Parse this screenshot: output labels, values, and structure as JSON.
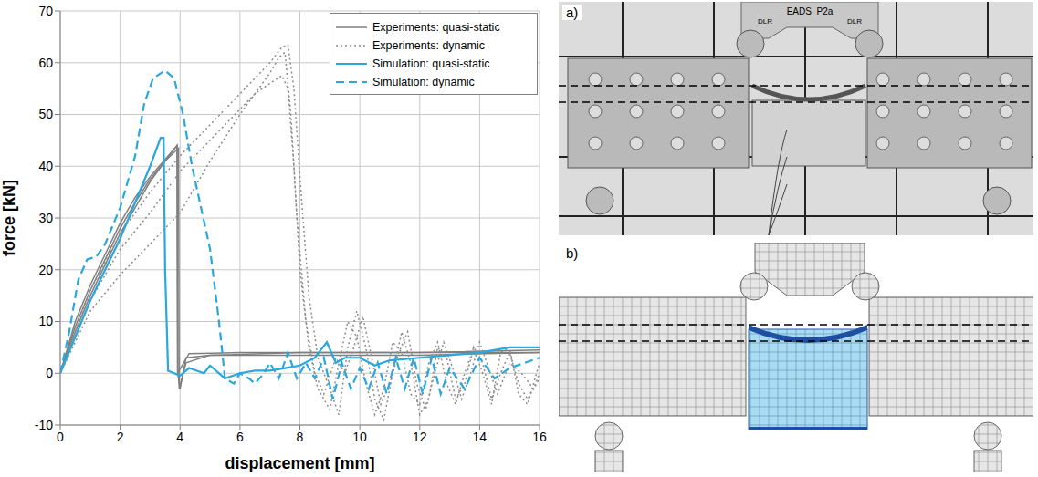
{
  "chart_data": {
    "type": "line",
    "x_label": "displacement [mm]",
    "y_label": "force [kN]",
    "xlim": [
      0,
      16
    ],
    "xticks": [
      0,
      2,
      4,
      6,
      8,
      10,
      12,
      14,
      16
    ],
    "ylim": [
      -10,
      70
    ],
    "yticks": [
      -10,
      0,
      10,
      20,
      30,
      40,
      50,
      60,
      70
    ],
    "grid": true,
    "legend": "top-right",
    "series": [
      {
        "name": "Experiments: quasi-static",
        "color": "#7f7f7f",
        "line_style": "solid",
        "x": [
          0,
          0.5,
          1,
          1.5,
          2,
          2.5,
          3,
          3.5,
          3.9,
          3.92,
          4,
          4.2,
          5,
          8,
          12,
          16
        ],
        "values": [
          0,
          8,
          15,
          21,
          27,
          32,
          37,
          41,
          44,
          0,
          -3,
          3,
          3.5,
          3.5,
          3.5,
          4
        ]
      },
      {
        "name": "Experiments: quasi-static",
        "color": "#7f7f7f",
        "line_style": "solid",
        "x": [
          0,
          0.5,
          1,
          1.5,
          2,
          2.5,
          3,
          3.5,
          3.95,
          3.97,
          4.2,
          5,
          8,
          12,
          16
        ],
        "values": [
          0,
          9,
          16,
          22,
          28,
          33,
          37.5,
          41,
          43.5,
          -3,
          2,
          3.5,
          4,
          4,
          4.5
        ]
      },
      {
        "name": "Experiments: quasi-static",
        "color": "#7f7f7f",
        "line_style": "solid",
        "x": [
          0,
          0.5,
          1,
          1.5,
          2,
          2.5,
          3,
          3.6,
          3.9,
          3.92,
          4.3,
          6,
          10,
          16
        ],
        "values": [
          0,
          10,
          17,
          23,
          29,
          34,
          38,
          42,
          44,
          0,
          3.8,
          4,
          4,
          4
        ]
      },
      {
        "name": "Experiments: dynamic",
        "color": "#8c8c8c",
        "line_style": "dotted",
        "x": [
          0,
          0.5,
          1,
          2,
          3,
          4,
          5,
          6,
          7,
          7.4,
          7.6,
          7.8,
          8,
          8.3,
          8.6,
          9,
          9.3,
          9.6,
          9.9,
          10.2,
          10.5,
          10.8,
          11.1,
          11.4,
          11.7,
          12,
          12.3,
          12.6,
          12.9,
          13.2,
          13.5,
          13.8,
          14.1,
          14.4,
          14.7,
          15,
          15.3,
          15.6,
          16
        ],
        "values": [
          0,
          8,
          16,
          27,
          35,
          42,
          48,
          54,
          60,
          63,
          63.5,
          55,
          38,
          15,
          3,
          -3,
          -8,
          5,
          12,
          5,
          -5,
          -9,
          0,
          8,
          2,
          -8,
          -5,
          5,
          3,
          -5,
          -2,
          5,
          0,
          -6,
          4,
          5,
          -4,
          -6,
          2
        ]
      },
      {
        "name": "Experiments: dynamic",
        "color": "#8c8c8c",
        "line_style": "dotted",
        "x": [
          0,
          0.5,
          1,
          2,
          3,
          4,
          5,
          6,
          6.5,
          7,
          7.4,
          7.6,
          7.8,
          8,
          8.3,
          8.6,
          9,
          9.3,
          9.6,
          9.9,
          10.2,
          10.5,
          10.8,
          11.1,
          11.4,
          11.7,
          12,
          12.3,
          12.6,
          12.9,
          13.2,
          13.5,
          13.8,
          14.1,
          14.4,
          14.7,
          15,
          15.3,
          15.6,
          16
        ],
        "values": [
          0,
          7,
          14,
          24,
          31,
          39,
          45,
          51,
          54,
          56,
          57.5,
          55,
          40,
          20,
          5,
          -3,
          -7,
          2,
          10,
          7,
          -2,
          -8,
          -3,
          6,
          4,
          -4,
          -6,
          2,
          6,
          -2,
          -6,
          0,
          5,
          2,
          -5,
          0,
          4,
          -2,
          -5,
          -1
        ]
      },
      {
        "name": "Experiments: dynamic",
        "color": "#8c8c8c",
        "line_style": "dotted",
        "x": [
          0,
          0.5,
          1,
          2,
          3,
          4,
          4.5,
          5,
          6,
          7,
          7.3,
          7.5,
          7.7,
          7.9,
          8.2,
          8.5,
          8.8,
          9.2,
          9.5,
          9.8,
          10.1,
          10.4,
          10.7,
          11,
          11.3,
          11.6,
          11.9,
          12.2,
          12.5,
          12.8,
          13.1,
          13.4,
          13.7,
          14,
          14.3,
          14.6,
          15,
          15.4,
          15.8,
          16
        ],
        "values": [
          0,
          6,
          12,
          19,
          25,
          31,
          36,
          41,
          50,
          58,
          61,
          62,
          50,
          30,
          10,
          0,
          -4,
          3,
          0,
          5,
          11,
          3,
          -6,
          -2,
          4,
          8,
          -2,
          -7,
          0,
          6,
          1,
          -5,
          0,
          6,
          1,
          -4,
          2,
          0,
          -3,
          0
        ]
      },
      {
        "name": "Simulation: quasi-static",
        "color": "#2aa7dc",
        "line_style": "solid",
        "x": [
          0,
          0.5,
          1,
          1.5,
          2,
          2.5,
          3,
          3.35,
          3.45,
          3.5,
          3.6,
          3.8,
          4,
          4.3,
          4.8,
          5,
          5.5,
          6,
          6.5,
          7,
          7.5,
          8,
          8.5,
          8.9,
          9.2,
          9.5,
          10,
          10.5,
          11,
          12,
          13,
          14,
          15,
          16
        ],
        "values": [
          0,
          7,
          14,
          20,
          26,
          33,
          40,
          45.5,
          45.5,
          20,
          0.5,
          0,
          -0.5,
          1,
          0,
          1.5,
          -1,
          0,
          0.5,
          0.5,
          1,
          1.5,
          3,
          6,
          2,
          3,
          3,
          1.5,
          2.5,
          3,
          3.5,
          4,
          5,
          5
        ]
      },
      {
        "name": "Simulation: dynamic",
        "color": "#2aa7dc",
        "line_style": "dashed",
        "x": [
          0,
          0.3,
          0.6,
          0.9,
          1.2,
          1.5,
          2,
          2.5,
          2.8,
          3.1,
          3.5,
          3.8,
          4.1,
          4.4,
          4.7,
          5,
          5.3,
          5.5,
          5.8,
          6,
          6.3,
          6.5,
          6.8,
          7,
          7.3,
          7.6,
          7.9,
          8.2,
          8.5,
          8.8,
          9.1,
          9.4,
          9.7,
          10,
          10.3,
          10.6,
          10.9,
          11.2,
          11.5,
          11.8,
          12.1,
          12.4,
          12.7,
          13,
          13.5,
          14,
          14.5,
          15,
          15.5,
          16
        ],
        "values": [
          0,
          8,
          18,
          22,
          22.5,
          25,
          32,
          42,
          52,
          57,
          58.5,
          57,
          50,
          40,
          32,
          24,
          10,
          -1,
          -2,
          0,
          -1,
          -2,
          0,
          2,
          -1,
          4,
          -1,
          2,
          -1,
          3,
          -5,
          2,
          -3,
          1,
          -3,
          2,
          -4,
          3,
          -3,
          3,
          -4,
          3,
          -4,
          1,
          -3,
          3,
          -1,
          1,
          2,
          3
        ]
      }
    ]
  },
  "panels": [
    {
      "label": "a)",
      "plate_text": "EADS_P2a",
      "logo_text": "DLR"
    },
    {
      "label": "b)"
    }
  ]
}
